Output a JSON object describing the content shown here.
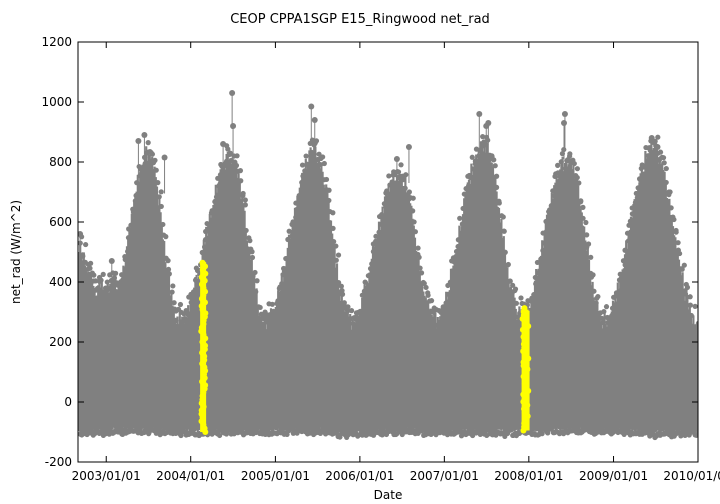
{
  "chart_data": {
    "type": "scatter",
    "title": "CEOP CPPA1SGP E15_Ringwood  net_rad",
    "xlabel": "Date",
    "ylabel": "net_rad (W/m^2)",
    "xlim": [
      "2002-09-01",
      "2010-01-01"
    ],
    "ylim": [
      -200,
      1200
    ],
    "y_ticks": [
      -200,
      0,
      200,
      400,
      600,
      800,
      1000,
      1200
    ],
    "x_ticks": [
      {
        "date": "2003-01-01",
        "label": "2003/01/01"
      },
      {
        "date": "2004-01-01",
        "label": "2004/01/01"
      },
      {
        "date": "2005-01-01",
        "label": "2005/01/01"
      },
      {
        "date": "2006-01-01",
        "label": "2006/01/01"
      },
      {
        "date": "2007-01-01",
        "label": "2007/01/01"
      },
      {
        "date": "2008-01-01",
        "label": "2008/01/01"
      },
      {
        "date": "2009-01-01",
        "label": "2009/01/01"
      },
      {
        "date": "2010-01-01",
        "label": "2010/01/01"
      }
    ],
    "series": [
      {
        "name": "net_rad",
        "color": "#808080",
        "seasonal_envelope": [
          {
            "date": "2002-09-01",
            "min": -100,
            "max": 540
          },
          {
            "date": "2002-12-01",
            "min": -100,
            "max": 400
          },
          {
            "date": "2003-02-15",
            "min": -95,
            "max": 420
          },
          {
            "date": "2003-06-25",
            "min": -95,
            "max": 860
          },
          {
            "date": "2003-11-15",
            "min": -100,
            "max": 300
          },
          {
            "date": "2004-06-20",
            "min": -100,
            "max": 840
          },
          {
            "date": "2004-11-20",
            "min": -100,
            "max": 300
          },
          {
            "date": "2005-06-20",
            "min": -95,
            "max": 860
          },
          {
            "date": "2005-11-20",
            "min": -105,
            "max": 300
          },
          {
            "date": "2006-06-20",
            "min": -95,
            "max": 790
          },
          {
            "date": "2006-11-20",
            "min": -100,
            "max": 300
          },
          {
            "date": "2007-06-20",
            "min": -100,
            "max": 880
          },
          {
            "date": "2007-11-25",
            "min": -100,
            "max": 320
          },
          {
            "date": "2008-06-20",
            "min": -95,
            "max": 840
          },
          {
            "date": "2008-11-20",
            "min": -95,
            "max": 300
          },
          {
            "date": "2009-06-20",
            "min": -105,
            "max": 870
          },
          {
            "date": "2010-01-01",
            "min": -100,
            "max": 280
          }
        ],
        "outliers": [
          {
            "date": "2003-05-20",
            "value": 870
          },
          {
            "date": "2003-06-15",
            "value": 890
          },
          {
            "date": "2003-09-10",
            "value": 815
          },
          {
            "date": "2004-05-20",
            "value": 860
          },
          {
            "date": "2004-06-28",
            "value": 1030
          },
          {
            "date": "2004-07-02",
            "value": 920
          },
          {
            "date": "2005-06-05",
            "value": 985
          },
          {
            "date": "2005-06-20",
            "value": 940
          },
          {
            "date": "2006-06-10",
            "value": 810
          },
          {
            "date": "2006-08-01",
            "value": 850
          },
          {
            "date": "2007-06-01",
            "value": 960
          },
          {
            "date": "2007-07-01",
            "value": 920
          },
          {
            "date": "2007-07-10",
            "value": 930
          },
          {
            "date": "2008-06-05",
            "value": 960
          },
          {
            "date": "2008-06-01",
            "value": 930
          },
          {
            "date": "2009-06-15",
            "value": 880
          },
          {
            "date": "2009-07-10",
            "value": 850
          },
          {
            "date": "2002-09-10",
            "value": 560
          },
          {
            "date": "2003-01-25",
            "value": 470
          },
          {
            "date": "2007-04-10",
            "value": 450
          }
        ]
      },
      {
        "name": "highlighted",
        "color": "#ffff00",
        "bands": [
          {
            "start": "2004-02-15",
            "end": "2004-03-05",
            "min": -100,
            "max": 470
          },
          {
            "start": "2007-12-05",
            "end": "2007-12-31",
            "min": -95,
            "max": 320
          }
        ]
      }
    ]
  }
}
